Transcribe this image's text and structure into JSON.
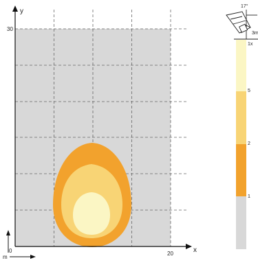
{
  "plot": {
    "y_axis_label": "y",
    "x_axis_label": "x",
    "origin_label": "0",
    "x_max_label": "20",
    "y_max_label": "30",
    "unit_label": "m",
    "colors": {
      "area": "#d8d8d8",
      "zone_outer": "#f2a22d",
      "zone_mid": "#f8d475",
      "zone_inner": "#fbf6c4"
    }
  },
  "mount": {
    "angle_label": "17°",
    "height_label": "3m"
  },
  "legend": {
    "levels": [
      {
        "label": "1x",
        "color": "#fbf6c4"
      },
      {
        "label": "5",
        "color": "#f8d475"
      },
      {
        "label": "2",
        "color": "#f2a22d"
      },
      {
        "label": "1",
        "color": "#d8d8d8"
      }
    ]
  }
}
